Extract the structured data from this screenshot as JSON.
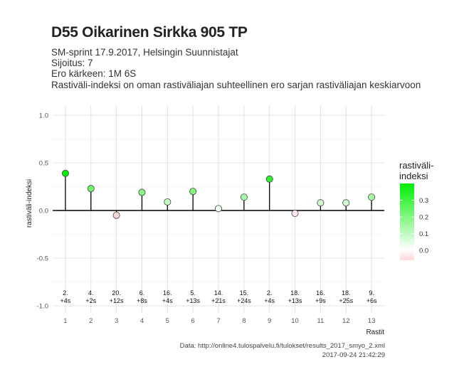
{
  "header": {
    "title": "D55 Oikarinen Sirkka 905 TP",
    "subtitle_lines": [
      "SM-sprint 17.9.2017, Helsingin Suunnistajat",
      "Sijoitus: 7",
      "Ero kärkeen: 1M 6S",
      "Rastiväli-indeksi on oman rastiväliajan suhteellinen ero sarjan rastiväliajan keskiarvoon"
    ]
  },
  "footer": {
    "source": "Data: http://online4.tulospalvelu.fi/tulokset/results_2017_smyo_2.xml",
    "timestamp": "2017-09-24 21:42:29"
  },
  "colors": {
    "positive": "#00ee00",
    "zero": "#ffffff",
    "negative": "#ffd6d6"
  },
  "chart_data": {
    "type": "scatter",
    "style": "lollipop",
    "xlabel": "Rastit",
    "ylabel": "rastiväli-indeksi",
    "x": [
      1,
      2,
      3,
      4,
      5,
      6,
      7,
      8,
      9,
      10,
      11,
      12,
      13
    ],
    "y": [
      0.39,
      0.23,
      -0.05,
      0.19,
      0.09,
      0.2,
      0.02,
      0.14,
      0.33,
      -0.03,
      0.08,
      0.08,
      0.14
    ],
    "point_labels": [
      [
        "2.",
        "+4s"
      ],
      [
        "4.",
        "+2s"
      ],
      [
        "20.",
        "+12s"
      ],
      [
        "6.",
        "+8s"
      ],
      [
        "16.",
        "+4s"
      ],
      [
        "5.",
        "+13s"
      ],
      [
        "14.",
        "+21s"
      ],
      [
        "15.",
        "+24s"
      ],
      [
        "2.",
        "+4s"
      ],
      [
        "18.",
        "+13s"
      ],
      [
        "16.",
        "+9s"
      ],
      [
        "18.",
        "+25s"
      ],
      [
        "9.",
        "+6s"
      ]
    ],
    "xticks": [
      "1",
      "2",
      "3",
      "4",
      "5",
      "6",
      "7",
      "8",
      "9",
      "10",
      "11",
      "12",
      "13"
    ],
    "yticks": [
      "-1.0",
      "-0.5",
      "0.0",
      "0.5",
      "1.0"
    ],
    "ylim": [
      -1.0,
      1.0
    ],
    "grid": true,
    "legend": {
      "title_lines": [
        "rastiväli-",
        "indeksi"
      ],
      "ticks": [
        "0.0",
        "0.1",
        "0.2",
        "0.3"
      ],
      "placement": "right"
    }
  }
}
